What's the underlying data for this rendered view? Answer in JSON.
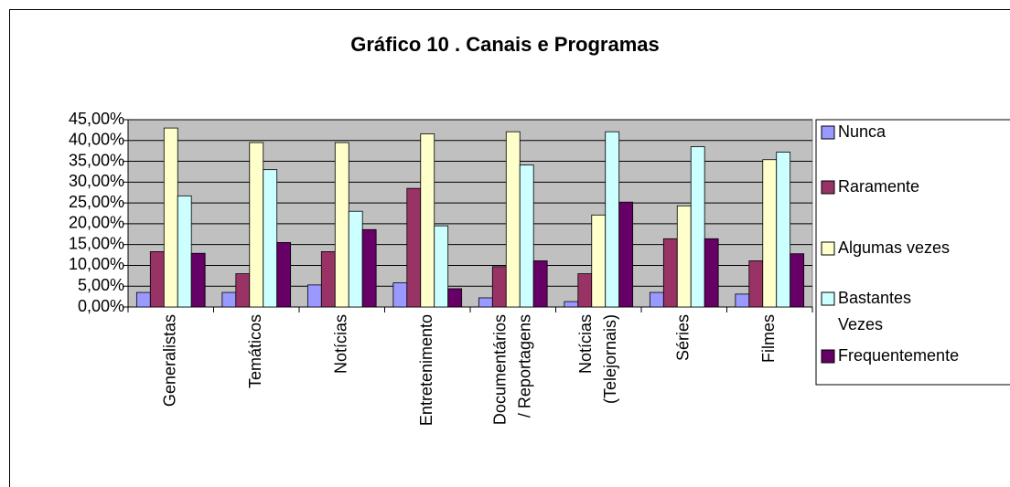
{
  "chart_data": {
    "type": "bar",
    "title": "Gráfico 10 . Canais e Programas",
    "categories": [
      "Generalistas",
      "Temáticos",
      "Notícias",
      "Entretenimento",
      "Documentários\n/ Reportagens",
      "Notícias\n(Telejornais)",
      "Séries",
      "Filmes"
    ],
    "series": [
      {
        "name": "Nunca",
        "color": "#9999ff",
        "values": [
          3.5,
          3.5,
          5.3,
          5.8,
          2.2,
          1.3,
          3.5,
          3.1
        ]
      },
      {
        "name": "Raramente",
        "color": "#993366",
        "values": [
          13.3,
          8,
          13.3,
          28.5,
          9.7,
          8,
          16.4,
          11.1
        ]
      },
      {
        "name": "Algumas vezes",
        "color": "#ffffcc",
        "values": [
          43,
          39.5,
          39.5,
          41.6,
          42.1,
          22.1,
          24.3,
          35.4
        ]
      },
      {
        "name": "Bastantes\nVezes",
        "color": "#ccffff",
        "values": [
          26.7,
          33,
          23,
          19.5,
          34.1,
          42.1,
          38.5,
          37.2
        ]
      },
      {
        "name": "Frequentemente",
        "color": "#660066",
        "values": [
          12.9,
          15.5,
          18.6,
          4.4,
          11.1,
          25.2,
          16.4,
          12.8
        ]
      }
    ],
    "ylim": [
      0,
      45
    ],
    "yticks": [
      {
        "value": 0,
        "label": "0,00%"
      },
      {
        "value": 5,
        "label": "5,00%"
      },
      {
        "value": 10,
        "label": "10,00%"
      },
      {
        "value": 15,
        "label": "15,00%"
      },
      {
        "value": 20,
        "label": "20,00%"
      },
      {
        "value": 25,
        "label": "25,00%"
      },
      {
        "value": 30,
        "label": "30,00%"
      },
      {
        "value": 35,
        "label": "35,00%"
      },
      {
        "value": 40,
        "label": "40,00%"
      },
      {
        "value": 45,
        "label": "45,00%"
      }
    ],
    "grid": true,
    "legend": "right"
  }
}
